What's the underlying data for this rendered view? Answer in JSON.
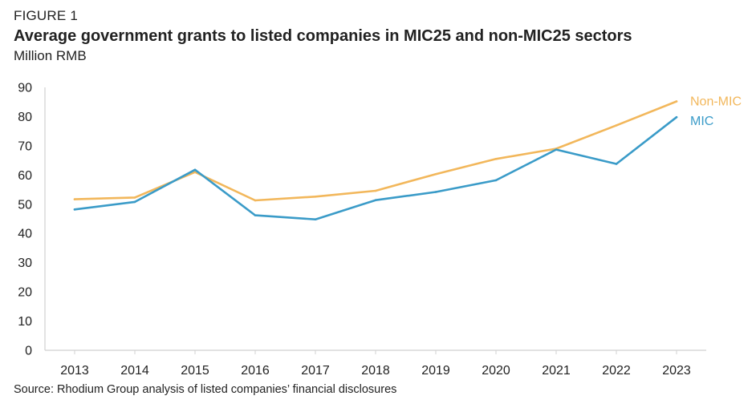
{
  "figure_label": "FIGURE 1",
  "source": "Source: Rhodium Group analysis of listed companies’ financial disclosures",
  "chart_data": {
    "type": "line",
    "title": "Average government grants to listed companies in MIC25 and non-MIC25 sectors",
    "ylabel": "Million RMB",
    "xlabel": "",
    "categories": [
      "2013",
      "2014",
      "2015",
      "2016",
      "2017",
      "2018",
      "2019",
      "2020",
      "2021",
      "2022",
      "2023"
    ],
    "ylim": [
      0,
      90
    ],
    "yticks": [
      0,
      10,
      20,
      30,
      40,
      50,
      60,
      70,
      80,
      90
    ],
    "grid": false,
    "legend": "inline-right",
    "series": [
      {
        "name": "Non-MIC",
        "color": "#F2B75B",
        "values": [
          51.7,
          52.3,
          61.0,
          51.3,
          52.6,
          54.6,
          60.3,
          65.5,
          69.0,
          77.0,
          85.2
        ]
      },
      {
        "name": "MIC",
        "color": "#3A9BC8",
        "values": [
          48.2,
          50.8,
          61.8,
          46.2,
          44.8,
          51.4,
          54.2,
          58.2,
          68.7,
          63.8,
          79.8
        ]
      }
    ]
  }
}
